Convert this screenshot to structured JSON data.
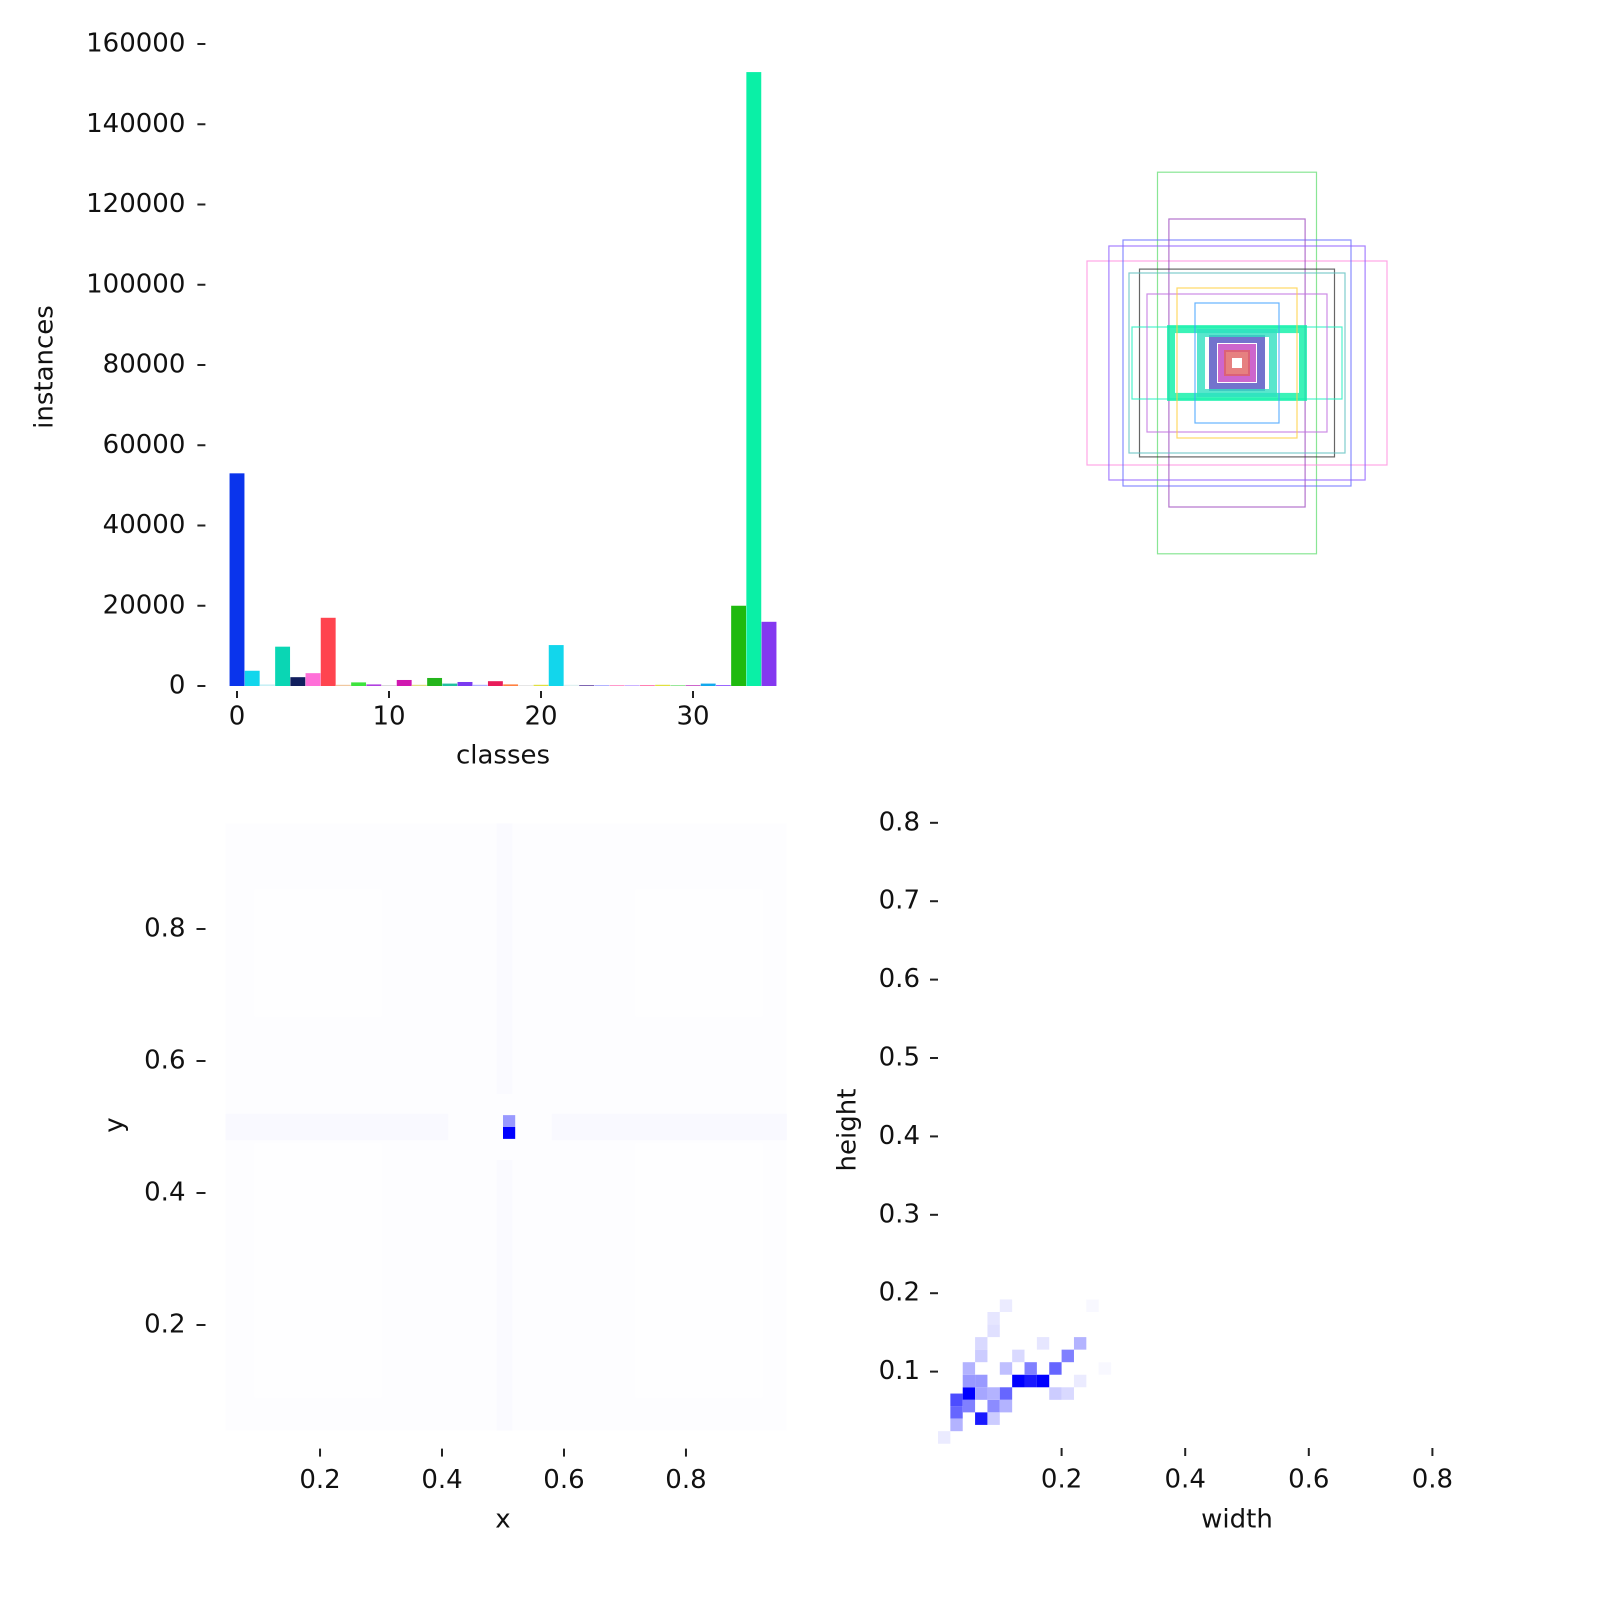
{
  "chart_data": [
    {
      "type": "bar",
      "xlabel": "classes",
      "ylabel": "instances",
      "x": [
        0,
        1,
        2,
        3,
        4,
        5,
        6,
        7,
        8,
        9,
        10,
        11,
        12,
        13,
        14,
        15,
        16,
        17,
        18,
        19,
        20,
        21,
        22,
        23,
        24,
        25,
        26,
        27,
        28,
        29,
        30,
        31,
        32,
        33,
        34,
        35
      ],
      "values": [
        53000,
        3800,
        400,
        9800,
        2200,
        3200,
        17000,
        300,
        900,
        400,
        200,
        1500,
        300,
        2000,
        600,
        1000,
        300,
        1200,
        400,
        100,
        300,
        10200,
        300,
        200,
        200,
        200,
        200,
        200,
        300,
        200,
        200,
        600,
        200,
        20000,
        153000,
        16000
      ],
      "colors": [
        "#0a34ec",
        "#12d6ec",
        "#c8f0f5",
        "#0ad6b4",
        "#111f5e",
        "#ff6fd8",
        "#ff444f",
        "#f0c8a0",
        "#3de33d",
        "#b040e0",
        "#d0d0d0",
        "#d018b0",
        "#e0e080",
        "#24b51c",
        "#20c0a0",
        "#7a3af0",
        "#b0b0ff",
        "#e81c5a",
        "#ff8040",
        "#c0c0c0",
        "#e0e040",
        "#12d6ec",
        "#e0f0f0",
        "#6040a0",
        "#a0a0ff",
        "#ff80c0",
        "#c0a0ff",
        "#ff60a0",
        "#e0e040",
        "#80e080",
        "#c040c0",
        "#12a8ec",
        "#8040ff",
        "#1fba0f",
        "#0af0a6",
        "#8438f0"
      ],
      "xlim": [
        -0.5,
        35.5
      ],
      "xticks": [
        0,
        10,
        20,
        30
      ],
      "ylim": [
        0,
        160000
      ],
      "yticks": [
        0,
        20000,
        40000,
        60000,
        80000,
        100000,
        120000,
        140000,
        160000
      ]
    },
    {
      "type": "boxes",
      "widths": [
        0.265,
        0.5,
        0.38,
        0.227,
        0.427,
        0.325,
        0.35,
        0.22,
        0.3,
        0.2,
        0.14,
        0.08,
        0.05,
        0.03,
        0.36,
        0.12
      ],
      "heights": [
        0.636,
        0.34,
        0.41,
        0.48,
        0.39,
        0.313,
        0.12,
        0.113,
        0.23,
        0.25,
        0.2,
        0.08,
        0.05,
        0.03,
        0.3,
        0.1
      ],
      "colors": [
        "#6be07a",
        "#ff90e0",
        "#6a70ff",
        "#a050c0",
        "#9060ff",
        "#404040",
        "#20f0c0",
        "#0af0a6",
        "#c070e0",
        "#ffd040",
        "#40a0ff",
        "#5050c0",
        "#c040c0",
        "#e06060",
        "#60c0c0",
        "#30e0c0"
      ]
    },
    {
      "type": "heatmap",
      "xlabel": "x",
      "ylabel": "y",
      "x0": [
        0.045,
        0.045,
        0.58,
        0.49,
        0.49,
        0.5,
        0.5
      ],
      "x1": [
        0.965,
        0.41,
        0.965,
        0.515,
        0.515,
        0.52,
        0.52
      ],
      "y0": [
        0.04,
        0.48,
        0.48,
        0.04,
        0.55,
        0.482,
        0.5
      ],
      "y1": [
        0.96,
        0.52,
        0.52,
        0.45,
        0.96,
        0.5,
        0.518
      ],
      "values": [
        1,
        4,
        4,
        3,
        3,
        100,
        40
      ],
      "xlim": [
        0.045,
        0.965
      ],
      "xticks": [
        0.2,
        0.4,
        0.6,
        0.8
      ],
      "ylim": [
        0.04,
        0.96
      ],
      "yticks": [
        0.2,
        0.4,
        0.6,
        0.8
      ]
    },
    {
      "type": "heatmap",
      "xlabel": "width",
      "ylabel": "height",
      "x0": [
        0.02,
        0.02,
        0.04,
        0.04,
        0.06,
        0.04,
        0.04,
        0.06,
        0.06,
        0.08,
        0.08,
        0.1,
        0.12,
        0.14,
        0.16,
        0.14,
        0.18,
        0.2,
        0.22,
        0.06,
        0.06,
        0.08,
        0.08,
        0.1,
        0.1,
        0.12,
        0.16,
        0.22,
        0.2,
        0.02,
        0.0,
        0.26,
        0.24,
        0.18,
        0.1,
        0.08
      ],
      "x1": [
        0.04,
        0.04,
        0.06,
        0.06,
        0.08,
        0.06,
        0.06,
        0.08,
        0.08,
        0.1,
        0.1,
        0.12,
        0.14,
        0.16,
        0.18,
        0.16,
        0.2,
        0.22,
        0.24,
        0.08,
        0.08,
        0.1,
        0.1,
        0.12,
        0.12,
        0.14,
        0.18,
        0.24,
        0.22,
        0.04,
        0.02,
        0.28,
        0.26,
        0.2,
        0.12,
        0.1
      ],
      "y0": [
        0.04,
        0.056,
        0.064,
        0.048,
        0.032,
        0.08,
        0.096,
        0.08,
        0.064,
        0.048,
        0.064,
        0.064,
        0.08,
        0.08,
        0.08,
        0.096,
        0.096,
        0.112,
        0.128,
        0.112,
        0.128,
        0.144,
        0.16,
        0.176,
        0.096,
        0.112,
        0.128,
        0.08,
        0.064,
        0.024,
        0.008,
        0.096,
        0.176,
        0.064,
        0.048,
        0.032
      ],
      "y1": [
        0.056,
        0.072,
        0.08,
        0.064,
        0.048,
        0.096,
        0.112,
        0.096,
        0.08,
        0.064,
        0.08,
        0.08,
        0.096,
        0.096,
        0.096,
        0.112,
        0.112,
        0.128,
        0.144,
        0.128,
        0.144,
        0.16,
        0.176,
        0.192,
        0.112,
        0.128,
        0.144,
        0.096,
        0.08,
        0.04,
        0.024,
        0.112,
        0.192,
        0.08,
        0.064,
        0.048
      ],
      "values": [
        60,
        70,
        100,
        50,
        90,
        40,
        30,
        40,
        35,
        45,
        30,
        60,
        100,
        90,
        100,
        50,
        60,
        50,
        30,
        20,
        15,
        12,
        10,
        8,
        25,
        15,
        10,
        8,
        15,
        30,
        8,
        5,
        5,
        20,
        30,
        20
      ],
      "xlim": [
        0,
        0.85
      ],
      "xticks": [
        0.2,
        0.4,
        0.6,
        0.8
      ],
      "ylim": [
        0,
        0.83
      ],
      "yticks": [
        0.1,
        0.2,
        0.3,
        0.4,
        0.5,
        0.6,
        0.7,
        0.8
      ]
    }
  ]
}
